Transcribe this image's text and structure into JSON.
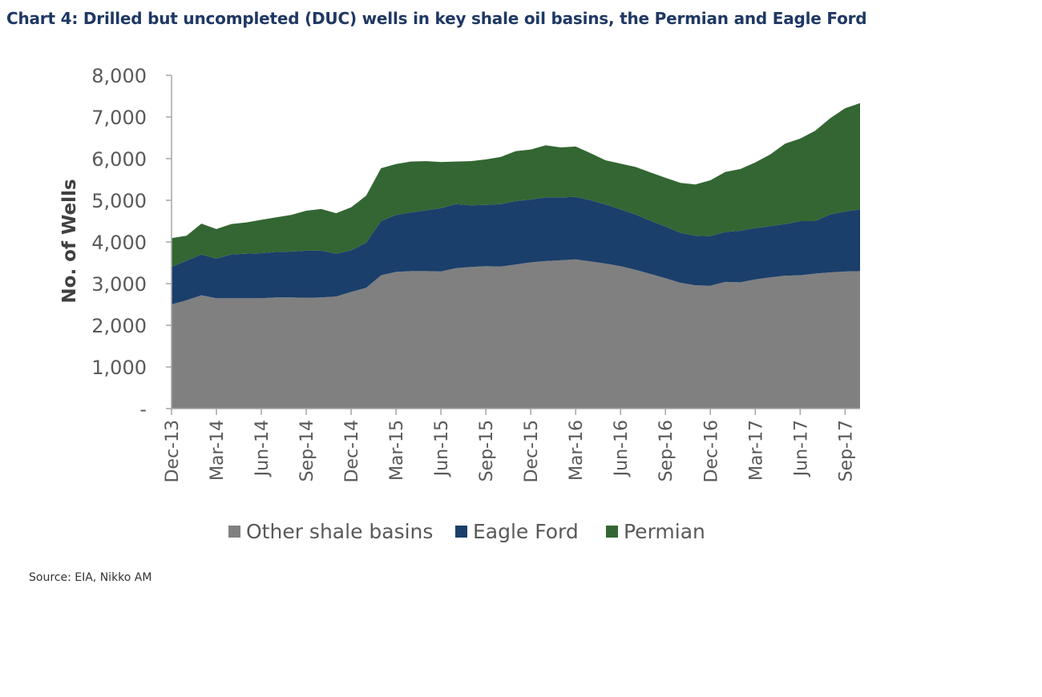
{
  "title": "Chart 4: Drilled but uncompleted (DUC) wells in key shale oil basins, the Permian and Eagle Ford",
  "source": "Source: EIA, Nikko AM",
  "colors": {
    "other": "#808080",
    "eagle": "#1b3f6b",
    "permian": "#336633",
    "axis": "#a6a6a6"
  },
  "chart_data": {
    "type": "area",
    "stacked": true,
    "ylabel": "No. of Wells",
    "ylim": [
      0,
      8000
    ],
    "y_ticks": [
      0,
      1000,
      2000,
      3000,
      4000,
      5000,
      6000,
      7000,
      8000
    ],
    "y_tick_labels": [
      "-",
      "1,000",
      "2,000",
      "3,000",
      "4,000",
      "5,000",
      "6,000",
      "7,000",
      "8,000"
    ],
    "x_tick_labels": [
      "Dec-13",
      "Mar-14",
      "Jun-14",
      "Sep-14",
      "Dec-14",
      "Mar-15",
      "Jun-15",
      "Sep-15",
      "Dec-15",
      "Mar-16",
      "Jun-16",
      "Sep-16",
      "Dec-16",
      "Mar-17",
      "Jun-17",
      "Sep-17"
    ],
    "legend_position": "bottom",
    "grid": false,
    "x": [
      "Dec-13",
      "Jan-14",
      "Feb-14",
      "Mar-14",
      "Apr-14",
      "May-14",
      "Jun-14",
      "Jul-14",
      "Aug-14",
      "Sep-14",
      "Oct-14",
      "Nov-14",
      "Dec-14",
      "Jan-15",
      "Feb-15",
      "Mar-15",
      "Apr-15",
      "May-15",
      "Jun-15",
      "Jul-15",
      "Aug-15",
      "Sep-15",
      "Oct-15",
      "Nov-15",
      "Dec-15",
      "Jan-16",
      "Feb-16",
      "Mar-16",
      "Apr-16",
      "May-16",
      "Jun-16",
      "Jul-16",
      "Aug-16",
      "Sep-16",
      "Oct-16",
      "Nov-16",
      "Dec-16",
      "Jan-17",
      "Feb-17",
      "Mar-17",
      "Apr-17",
      "May-17",
      "Jun-17",
      "Jul-17",
      "Aug-17",
      "Sep-17",
      "Oct-17"
    ],
    "series": [
      {
        "name": "Other shale basins",
        "values": [
          2500,
          2600,
          2720,
          2650,
          2650,
          2650,
          2650,
          2670,
          2670,
          2660,
          2670,
          2690,
          2800,
          2900,
          3200,
          3280,
          3300,
          3300,
          3290,
          3370,
          3400,
          3420,
          3410,
          3460,
          3510,
          3540,
          3560,
          3580,
          3530,
          3480,
          3420,
          3330,
          3230,
          3130,
          3020,
          2960,
          2950,
          3040,
          3030,
          3100,
          3150,
          3190,
          3200,
          3240,
          3270,
          3290,
          3300
        ]
      },
      {
        "name": "Eagle Ford",
        "values": [
          900,
          950,
          980,
          950,
          1050,
          1070,
          1080,
          1090,
          1100,
          1130,
          1120,
          1030,
          1000,
          1080,
          1300,
          1370,
          1410,
          1460,
          1520,
          1540,
          1480,
          1470,
          1500,
          1520,
          1510,
          1530,
          1510,
          1500,
          1470,
          1420,
          1360,
          1330,
          1280,
          1240,
          1200,
          1190,
          1190,
          1200,
          1240,
          1230,
          1230,
          1240,
          1300,
          1260,
          1390,
          1440,
          1480
        ]
      },
      {
        "name": "Permian",
        "values": [
          690,
          600,
          740,
          710,
          730,
          750,
          800,
          830,
          880,
          960,
          1000,
          970,
          1030,
          1130,
          1270,
          1220,
          1220,
          1180,
          1110,
          1020,
          1060,
          1090,
          1130,
          1200,
          1200,
          1250,
          1200,
          1210,
          1130,
          1060,
          1100,
          1140,
          1160,
          1170,
          1200,
          1230,
          1340,
          1440,
          1480,
          1580,
          1720,
          1930,
          1980,
          2170,
          2310,
          2480,
          2550
        ]
      }
    ]
  }
}
